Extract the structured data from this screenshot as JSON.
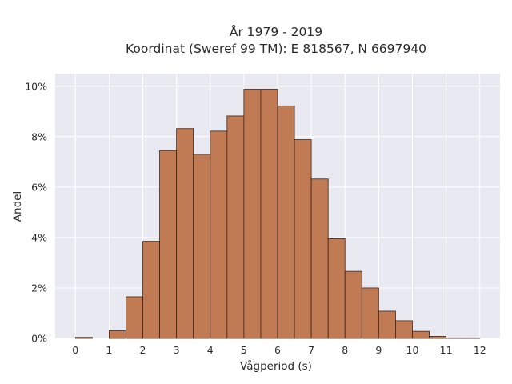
{
  "chart_data": {
    "type": "bar",
    "title_line1": "År 1979 - 2019",
    "title_line2": "Koordinat (Sweref 99 TM): E 818567, N 6697940",
    "xlabel": "Vågperiod (s)",
    "ylabel": "Andel",
    "x_ticks": [
      "0",
      "1",
      "2",
      "3",
      "4",
      "5",
      "6",
      "7",
      "8",
      "9",
      "10",
      "11",
      "12"
    ],
    "y_ticks": [
      "0%",
      "2%",
      "4%",
      "6%",
      "8%",
      "10%"
    ],
    "xlim": [
      -0.6,
      12.6
    ],
    "ylim": [
      0,
      10.5
    ],
    "bin_width": 0.5,
    "bins_start": [
      0,
      1,
      1.5,
      2,
      2.5,
      3,
      3.5,
      4,
      4.5,
      5,
      5.5,
      6,
      6.5,
      7,
      7.5,
      8,
      8.5,
      9,
      9.5,
      10,
      10.5,
      11,
      11.5
    ],
    "values": [
      0.04,
      0.3,
      1.65,
      3.85,
      7.45,
      8.32,
      7.3,
      8.22,
      8.82,
      9.88,
      9.88,
      9.22,
      7.88,
      6.32,
      3.95,
      2.66,
      2.0,
      1.08,
      0.7,
      0.28,
      0.08,
      0.02,
      0.02
    ],
    "grid": true,
    "bar_color": "#c07a54",
    "bar_edge": "#3a2418",
    "bg_color": "#e9e9f1"
  }
}
